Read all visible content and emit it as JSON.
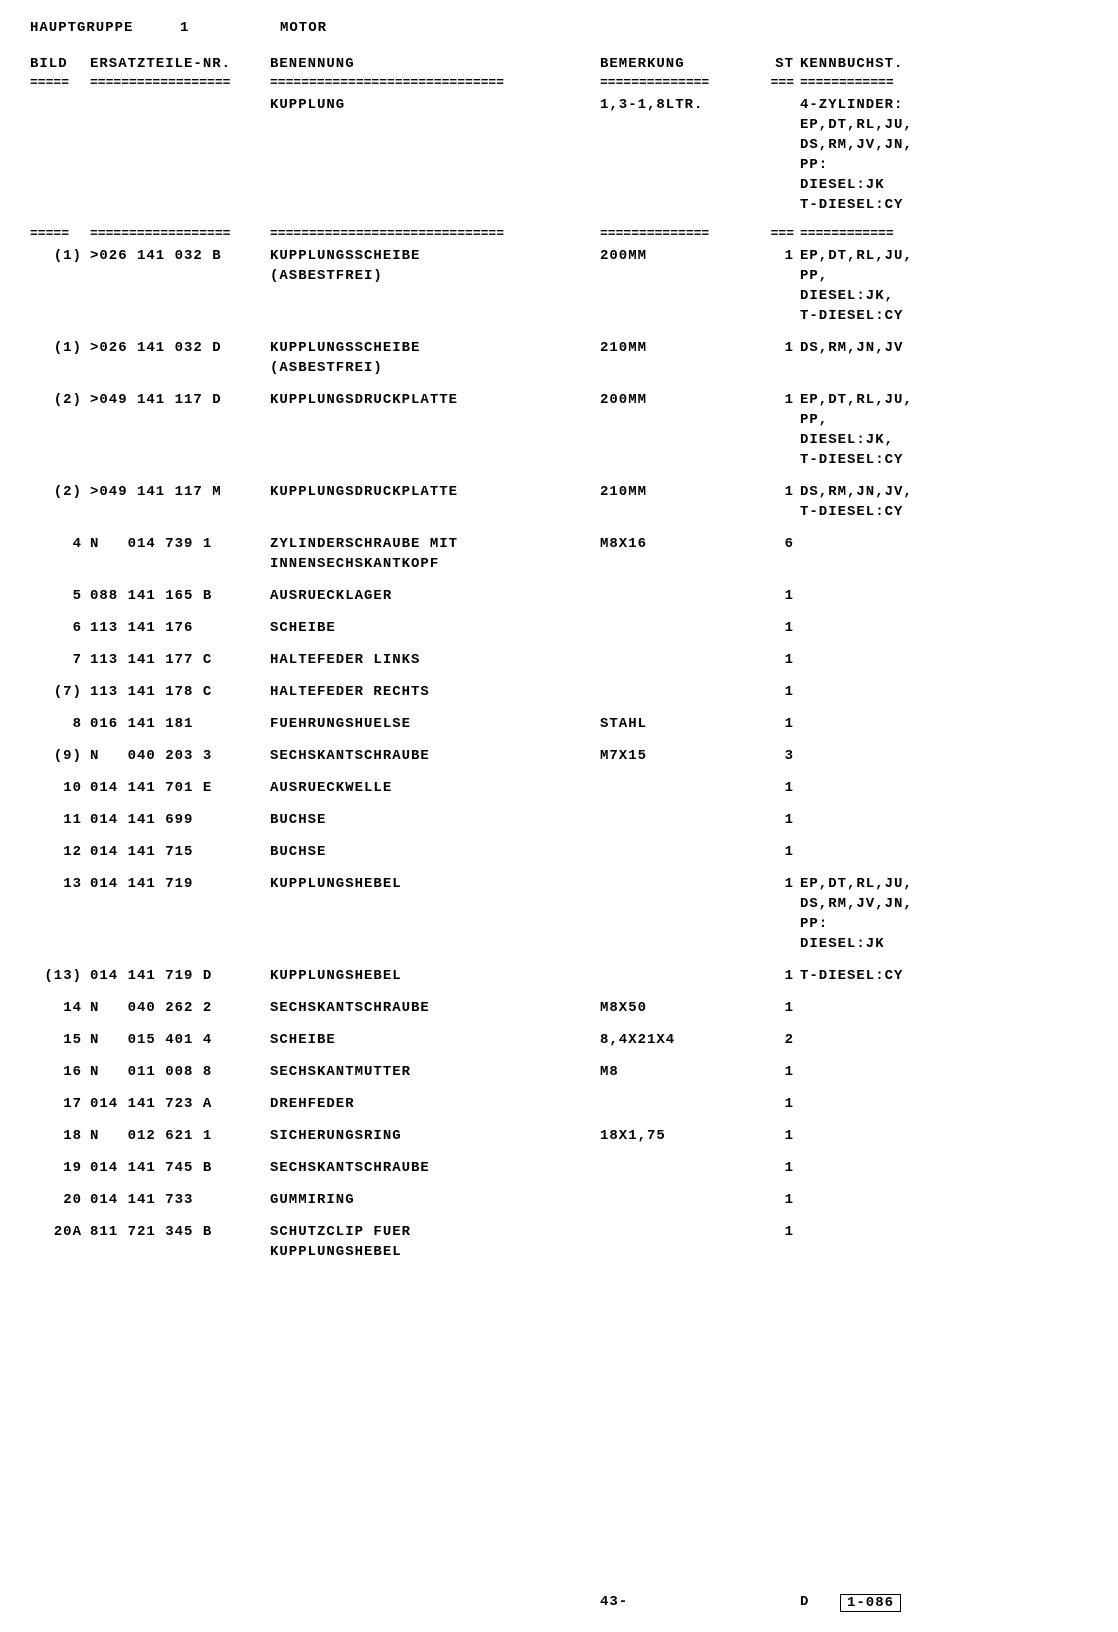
{
  "header": {
    "group_label": "HAUPTGRUPPE",
    "group_num": "1",
    "group_name": "MOTOR"
  },
  "columns": {
    "bild": "BILD",
    "part": "ERSATZTEILE-NR.",
    "benennung": "BENENNUNG",
    "bemerkung": "BEMERKUNG",
    "st": "ST",
    "kenn": "KENNBUCHST."
  },
  "separator": {
    "bild": "=====",
    "part": "==================",
    "benennung": "==============================",
    "bemerkung": "==============",
    "st": "===",
    "kenn": "============"
  },
  "rows": [
    {
      "bild": "",
      "part": "",
      "benennung": "KUPPLUNG",
      "bemerkung": "1,3-1,8LTR.",
      "st": "",
      "kenn": "4-ZYLINDER:\nEP,DT,RL,JU,\nDS,RM,JV,JN,\nPP:\nDIESEL:JK\nT-DIESEL:CY"
    },
    {
      "type": "sep"
    },
    {
      "bild": "(1)",
      "part": ">026 141 032 B",
      "benennung": "KUPPLUNGSSCHEIBE\n(ASBESTFREI)",
      "bemerkung": "200MM",
      "st": "1",
      "kenn": "EP,DT,RL,JU,\nPP,\nDIESEL:JK,\nT-DIESEL:CY"
    },
    {
      "bild": "(1)",
      "part": ">026 141 032 D",
      "benennung": "KUPPLUNGSSCHEIBE\n(ASBESTFREI)",
      "bemerkung": "210MM",
      "st": "1",
      "kenn": "DS,RM,JN,JV"
    },
    {
      "bild": "(2)",
      "part": ">049 141 117 D",
      "benennung": "KUPPLUNGSDRUCKPLATTE",
      "bemerkung": "200MM",
      "st": "1",
      "kenn": "EP,DT,RL,JU,\nPP,\nDIESEL:JK,\nT-DIESEL:CY"
    },
    {
      "bild": "(2)",
      "part": ">049 141 117 M",
      "benennung": "KUPPLUNGSDRUCKPLATTE",
      "bemerkung": "210MM",
      "st": "1",
      "kenn": "DS,RM,JN,JV,\nT-DIESEL:CY"
    },
    {
      "bild": "4",
      "part": "N   014 739 1",
      "benennung": "ZYLINDERSCHRAUBE MIT\nINNENSECHSKANTKOPF",
      "bemerkung": "M8X16",
      "st": "6",
      "kenn": ""
    },
    {
      "bild": "5",
      "part": "088 141 165 B",
      "benennung": "AUSRUECKLAGER",
      "bemerkung": "",
      "st": "1",
      "kenn": ""
    },
    {
      "bild": "6",
      "part": "113 141 176",
      "benennung": "SCHEIBE",
      "bemerkung": "",
      "st": "1",
      "kenn": ""
    },
    {
      "bild": "7",
      "part": "113 141 177 C",
      "benennung": "HALTEFEDER LINKS",
      "bemerkung": "",
      "st": "1",
      "kenn": ""
    },
    {
      "bild": "(7)",
      "part": "113 141 178 C",
      "benennung": "HALTEFEDER RECHTS",
      "bemerkung": "",
      "st": "1",
      "kenn": ""
    },
    {
      "bild": "8",
      "part": "016 141 181",
      "benennung": "FUEHRUNGSHUELSE",
      "bemerkung": "STAHL",
      "st": "1",
      "kenn": ""
    },
    {
      "bild": "(9)",
      "part": "N   040 203 3",
      "benennung": "SECHSKANTSCHRAUBE",
      "bemerkung": "M7X15",
      "st": "3",
      "kenn": ""
    },
    {
      "bild": "10",
      "part": "014 141 701 E",
      "benennung": "AUSRUECKWELLE",
      "bemerkung": "",
      "st": "1",
      "kenn": ""
    },
    {
      "bild": "11",
      "part": "014 141 699",
      "benennung": "BUCHSE",
      "bemerkung": "",
      "st": "1",
      "kenn": ""
    },
    {
      "bild": "12",
      "part": "014 141 715",
      "benennung": "BUCHSE",
      "bemerkung": "",
      "st": "1",
      "kenn": ""
    },
    {
      "bild": "13",
      "part": "014 141 719",
      "benennung": "KUPPLUNGSHEBEL",
      "bemerkung": "",
      "st": "1",
      "kenn": "EP,DT,RL,JU,\nDS,RM,JV,JN,\nPP:\nDIESEL:JK"
    },
    {
      "bild": "(13)",
      "part": "014 141 719 D",
      "benennung": "KUPPLUNGSHEBEL",
      "bemerkung": "",
      "st": "1",
      "kenn": "T-DIESEL:CY"
    },
    {
      "bild": "14",
      "part": "N   040 262 2",
      "benennung": "SECHSKANTSCHRAUBE",
      "bemerkung": "M8X50",
      "st": "1",
      "kenn": ""
    },
    {
      "bild": "15",
      "part": "N   015 401 4",
      "benennung": "SCHEIBE",
      "bemerkung": "8,4X21X4",
      "st": "2",
      "kenn": ""
    },
    {
      "bild": "16",
      "part": "N   011 008 8",
      "benennung": "SECHSKANTMUTTER",
      "bemerkung": "M8",
      "st": "1",
      "kenn": ""
    },
    {
      "bild": "17",
      "part": "014 141 723 A",
      "benennung": "DREHFEDER",
      "bemerkung": "",
      "st": "1",
      "kenn": ""
    },
    {
      "bild": "18",
      "part": "N   012 621 1",
      "benennung": "SICHERUNGSRING",
      "bemerkung": "18X1,75",
      "st": "1",
      "kenn": ""
    },
    {
      "bild": "19",
      "part": "014 141 745 B",
      "benennung": "SECHSKANTSCHRAUBE",
      "bemerkung": "",
      "st": "1",
      "kenn": ""
    },
    {
      "bild": "20",
      "part": "014 141 733",
      "benennung": "GUMMIRING",
      "bemerkung": "",
      "st": "1",
      "kenn": ""
    },
    {
      "bild": "20A",
      "part": "811 721 345 B",
      "benennung": "SCHUTZCLIP FUER\nKUPPLUNGSHEBEL",
      "bemerkung": "",
      "st": "1",
      "kenn": ""
    }
  ],
  "footer": {
    "page": "43-",
    "d": "D",
    "code": "1-086"
  }
}
